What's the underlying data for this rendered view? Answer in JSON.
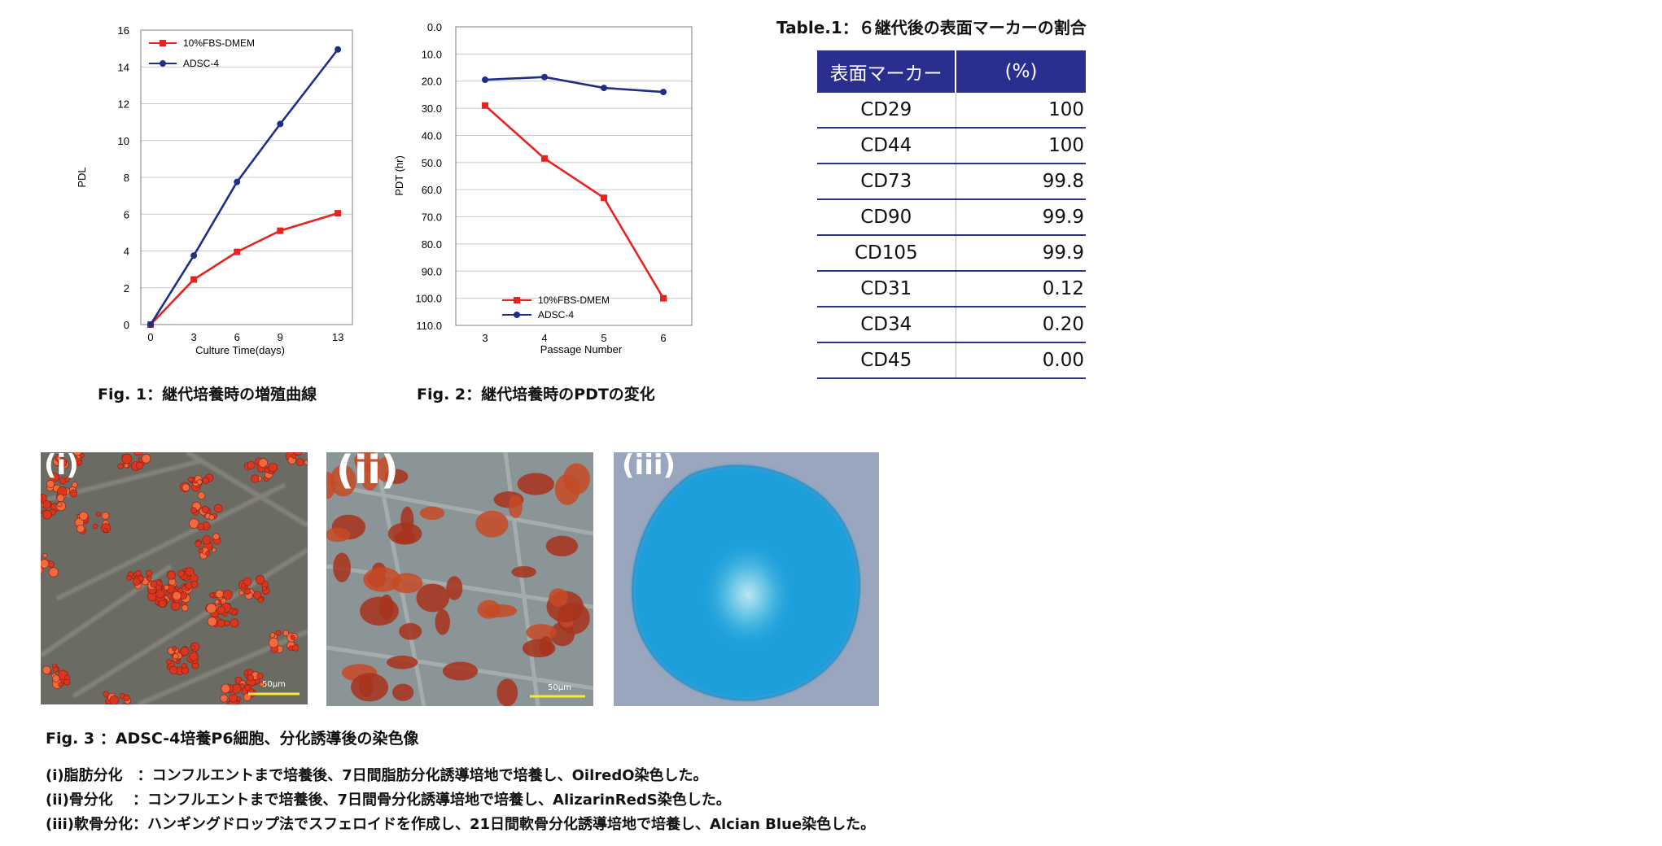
{
  "chart_data": [
    {
      "type": "line",
      "title": "",
      "xlabel": "Culture Time(days)",
      "ylabel": "PDL",
      "x": [
        0,
        3,
        6,
        9,
        13
      ],
      "xticks": [
        "0",
        "3",
        "6",
        "9",
        "13"
      ],
      "yticks": [
        "0",
        "2",
        "4",
        "6",
        "8",
        "10",
        "12",
        "14",
        "16"
      ],
      "ylim": [
        0,
        16
      ],
      "grid": true,
      "legend_position": "top-left",
      "series": [
        {
          "name": "10%FBS-DMEM",
          "color": "#e8231f",
          "marker": "square",
          "values": [
            0,
            2.45,
            3.95,
            5.1,
            6.05
          ]
        },
        {
          "name": "ADSC-4",
          "color": "#1f2f86",
          "marker": "circle",
          "values": [
            0,
            3.75,
            7.75,
            10.9,
            14.95
          ]
        }
      ]
    },
    {
      "type": "line",
      "title": "",
      "xlabel": "Passage Number",
      "ylabel": "PDT (hr)",
      "x": [
        3,
        4,
        5,
        6
      ],
      "xticks": [
        "3",
        "4",
        "5",
        "6"
      ],
      "yticks": [
        "0.0",
        "10.0",
        "20.0",
        "30.0",
        "40.0",
        "50.0",
        "60.0",
        "70.0",
        "80.0",
        "90.0",
        "100.0",
        "110.0"
      ],
      "ylim": [
        0,
        110
      ],
      "y_inverted": true,
      "grid": true,
      "legend_position": "bottom-center",
      "series": [
        {
          "name": "10%FBS-DMEM",
          "color": "#e8231f",
          "marker": "square",
          "values": [
            29.0,
            48.5,
            63.0,
            100.0
          ]
        },
        {
          "name": "ADSC-4",
          "color": "#1f2f86",
          "marker": "circle",
          "values": [
            19.5,
            18.5,
            22.5,
            24.0
          ]
        }
      ]
    },
    {
      "type": "table",
      "title": "Table.1：６継代後の表面マーカーの割合",
      "columns": [
        "表面マーカー",
        "(%)"
      ],
      "rows": [
        [
          "CD29",
          "100"
        ],
        [
          "CD44",
          "100"
        ],
        [
          "CD73",
          "99.8"
        ],
        [
          "CD90",
          "99.9"
        ],
        [
          "CD105",
          "99.9"
        ],
        [
          "CD31",
          "0.12"
        ],
        [
          "CD34",
          "0.20"
        ],
        [
          "CD45",
          "0.00"
        ]
      ]
    }
  ],
  "captions": {
    "fig1": "Fig. 1：継代培養時の増殖曲線",
    "fig2": "Fig. 2：継代培養時のPDTの変化"
  },
  "photos": {
    "i": {
      "label": "(i)",
      "scale_bar": "50μm"
    },
    "ii": {
      "label": "(ii)",
      "scale_bar": "50μm"
    },
    "iii": {
      "label": "(iii)"
    }
  },
  "fig3": {
    "title": "Fig. 3 ：ADSC-4培養P6細胞、分化誘導後の染色像",
    "descriptions": [
      "(i)脂肪分化　：コンフルエントまで培養後、7日間脂肪分化誘導培地で培養し、OilredO染色した。",
      "(ii)骨分化　 ：コンフルエントまで培養後、7日間骨分化誘導培地で培養し、AlizarinRedS染色した。",
      "(iii)軟骨分化：ハンギングドロップ法でスフェロイドを作成し、21日間軟骨分化誘導培地で培養し、Alcian Blue染色した。"
    ]
  },
  "colors": {
    "fbs_series": "#e8231f",
    "adsc_series": "#1f2f86",
    "table_header": "#2a2e8e",
    "alcian_blue": "#1ea0dc"
  }
}
